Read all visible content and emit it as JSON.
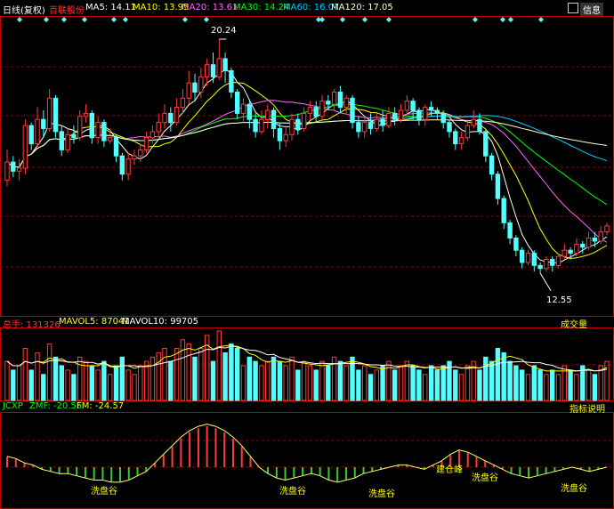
{
  "header": {
    "period": "日线(复权)",
    "stock_name": "百联股份",
    "ma": [
      {
        "label": "MA5: 14.11",
        "color": "#ffffff"
      },
      {
        "label": "MA10: 13.95",
        "color": "#ffff00"
      },
      {
        "label": "MA20: 13.61",
        "color": "#ff66ff"
      },
      {
        "label": "MA30: 14.24",
        "color": "#00ff00"
      },
      {
        "label": "MA60: 16.07",
        "color": "#00ccff"
      },
      {
        "label": "MA120: 17.05",
        "color": "#ffffcc"
      }
    ],
    "right_button": "信息",
    "icon": "grid-icon"
  },
  "colors": {
    "up": "#ff3b3b",
    "down": "#54ffff",
    "grid": "#8a0000",
    "border": "#c00000"
  },
  "annotations": {
    "high": "20.24",
    "low": "12.55"
  },
  "volume_header": {
    "total_label": "总手: 131326",
    "mavol5_label": "MAVOL5: 87041",
    "mavol10_label": "MAVOL10: 99705",
    "right_label": "成交量"
  },
  "indicator_header": {
    "name": "JCXP",
    "zmf_label": "ZMF: -20.55",
    "fm_label": "FM: -24.57",
    "right_label": "指标说明",
    "tags": [
      "洗盘谷",
      "洗盘谷",
      "洗盘谷",
      "建仓峰",
      "洗盘谷",
      "洗盘谷"
    ]
  },
  "chart_data": {
    "type": "candlestick",
    "high_price": 20.24,
    "low_price": 12.55,
    "price_range": [
      11.2,
      21.0
    ],
    "candles": [
      [
        15.6,
        16.2,
        16.6,
        15.4
      ],
      [
        16.2,
        15.9,
        16.4,
        15.7
      ],
      [
        15.9,
        16.0,
        16.3,
        15.6
      ],
      [
        16.0,
        17.4,
        17.6,
        15.8
      ],
      [
        17.4,
        16.8,
        17.5,
        16.6
      ],
      [
        16.8,
        17.6,
        18.0,
        16.7
      ],
      [
        17.6,
        17.3,
        17.9,
        17.0
      ],
      [
        17.3,
        18.3,
        18.6,
        17.2
      ],
      [
        18.3,
        17.2,
        18.4,
        17.0
      ],
      [
        17.2,
        16.6,
        17.4,
        16.4
      ],
      [
        16.6,
        17.1,
        17.3,
        16.5
      ],
      [
        17.1,
        17.0,
        17.4,
        16.8
      ],
      [
        17.0,
        17.7,
        17.9,
        16.9
      ],
      [
        17.7,
        17.8,
        18.1,
        17.5
      ],
      [
        17.8,
        17.0,
        17.9,
        16.8
      ],
      [
        17.0,
        17.5,
        17.7,
        16.8
      ],
      [
        17.5,
        16.9,
        17.6,
        16.7
      ],
      [
        16.9,
        17.0,
        17.3,
        16.8
      ],
      [
        17.0,
        16.4,
        17.1,
        16.2
      ],
      [
        16.4,
        15.8,
        16.5,
        15.6
      ],
      [
        15.8,
        16.3,
        16.5,
        15.6
      ],
      [
        16.3,
        16.4,
        16.6,
        16.1
      ],
      [
        16.4,
        16.6,
        16.8,
        16.2
      ],
      [
        16.6,
        17.0,
        17.2,
        16.5
      ],
      [
        17.0,
        17.2,
        17.4,
        16.8
      ],
      [
        17.2,
        17.5,
        17.8,
        17.0
      ],
      [
        17.5,
        17.8,
        18.1,
        17.3
      ],
      [
        17.8,
        17.5,
        18.0,
        17.2
      ],
      [
        17.5,
        18.0,
        18.3,
        17.4
      ],
      [
        18.0,
        18.3,
        18.6,
        17.8
      ],
      [
        18.3,
        18.8,
        19.2,
        18.1
      ],
      [
        18.8,
        18.5,
        19.1,
        18.2
      ],
      [
        18.5,
        19.0,
        19.3,
        18.3
      ],
      [
        19.0,
        19.4,
        19.6,
        18.7
      ],
      [
        19.4,
        19.0,
        19.8,
        18.8
      ],
      [
        19.0,
        19.6,
        20.24,
        18.9
      ],
      [
        19.6,
        19.2,
        19.8,
        18.8
      ],
      [
        19.2,
        18.5,
        19.3,
        18.3
      ],
      [
        18.5,
        17.8,
        18.6,
        17.6
      ],
      [
        17.8,
        18.1,
        18.3,
        17.5
      ],
      [
        18.1,
        17.6,
        18.2,
        17.3
      ],
      [
        17.6,
        17.2,
        17.8,
        17.0
      ],
      [
        17.2,
        17.6,
        17.9,
        17.1
      ],
      [
        17.6,
        17.9,
        18.1,
        17.3
      ],
      [
        17.9,
        17.3,
        18.0,
        17.0
      ],
      [
        17.3,
        16.9,
        17.5,
        16.6
      ],
      [
        16.9,
        17.1,
        17.4,
        16.7
      ],
      [
        17.1,
        17.6,
        17.8,
        16.9
      ],
      [
        17.6,
        17.3,
        17.8,
        17.1
      ],
      [
        17.3,
        17.8,
        18.0,
        17.2
      ],
      [
        17.8,
        18.0,
        18.2,
        17.6
      ],
      [
        18.0,
        17.7,
        18.2,
        17.5
      ],
      [
        17.7,
        18.2,
        18.4,
        17.6
      ],
      [
        18.2,
        18.1,
        18.4,
        17.9
      ],
      [
        18.1,
        18.5,
        18.6,
        17.9
      ],
      [
        18.5,
        18.0,
        18.7,
        17.8
      ],
      [
        18.0,
        18.3,
        18.4,
        17.8
      ],
      [
        18.3,
        17.5,
        18.4,
        17.3
      ],
      [
        17.5,
        17.2,
        17.7,
        17.0
      ],
      [
        17.2,
        17.5,
        17.7,
        17.0
      ],
      [
        17.5,
        17.3,
        17.8,
        17.1
      ],
      [
        17.3,
        17.6,
        17.8,
        17.2
      ],
      [
        17.6,
        17.4,
        17.9,
        17.2
      ],
      [
        17.4,
        17.8,
        18.0,
        17.3
      ],
      [
        17.8,
        17.6,
        18.0,
        17.4
      ],
      [
        17.6,
        17.9,
        18.1,
        17.5
      ],
      [
        17.9,
        18.2,
        18.4,
        17.7
      ],
      [
        18.2,
        17.9,
        18.3,
        17.6
      ],
      [
        17.9,
        17.6,
        18.0,
        17.4
      ],
      [
        17.6,
        18.0,
        18.1,
        17.4
      ],
      [
        18.0,
        17.9,
        18.2,
        17.7
      ],
      [
        17.9,
        17.8,
        18.0,
        17.6
      ],
      [
        17.8,
        17.5,
        17.9,
        17.3
      ],
      [
        17.5,
        17.2,
        17.6,
        17.0
      ],
      [
        17.2,
        16.8,
        17.3,
        16.6
      ],
      [
        16.8,
        17.0,
        17.2,
        16.6
      ],
      [
        17.0,
        17.4,
        17.6,
        16.9
      ],
      [
        17.4,
        17.6,
        17.9,
        17.3
      ],
      [
        17.6,
        17.2,
        17.8,
        17.1
      ],
      [
        17.2,
        16.4,
        17.3,
        16.2
      ],
      [
        16.4,
        15.8,
        16.5,
        15.6
      ],
      [
        15.8,
        15.0,
        15.9,
        14.8
      ],
      [
        15.0,
        14.2,
        15.1,
        14.0
      ],
      [
        14.2,
        13.7,
        14.3,
        13.5
      ],
      [
        13.7,
        13.3,
        13.8,
        13.1
      ],
      [
        13.3,
        12.9,
        13.4,
        12.7
      ],
      [
        12.9,
        13.2,
        13.3,
        12.8
      ],
      [
        13.2,
        12.8,
        13.3,
        12.6
      ],
      [
        12.8,
        12.7,
        12.9,
        12.55
      ],
      [
        12.7,
        13.0,
        13.1,
        12.6
      ],
      [
        13.0,
        12.8,
        13.1,
        12.6
      ],
      [
        12.8,
        13.1,
        13.2,
        12.7
      ],
      [
        13.1,
        13.3,
        13.5,
        13.0
      ],
      [
        13.3,
        13.2,
        13.4,
        13.0
      ],
      [
        13.2,
        13.5,
        13.7,
        13.1
      ],
      [
        13.5,
        13.4,
        13.6,
        13.2
      ],
      [
        13.4,
        13.7,
        13.9,
        13.3
      ],
      [
        13.7,
        13.6,
        13.9,
        13.4
      ],
      [
        13.6,
        13.9,
        14.1,
        13.5
      ],
      [
        13.9,
        14.1,
        14.2,
        13.8
      ]
    ],
    "volume": [
      9,
      7,
      8,
      12,
      7,
      11,
      6,
      13,
      10,
      8,
      7,
      6,
      10,
      9,
      8,
      7,
      9,
      6,
      8,
      10,
      7,
      6,
      8,
      9,
      10,
      11,
      12,
      9,
      12,
      14,
      13,
      10,
      12,
      15,
      9,
      16,
      11,
      13,
      12,
      8,
      10,
      9,
      8,
      9,
      10,
      9,
      8,
      10,
      7,
      9,
      8,
      7,
      9,
      8,
      10,
      9,
      8,
      10,
      7,
      8,
      6,
      7,
      8,
      9,
      7,
      8,
      9,
      8,
      7,
      6,
      8,
      7,
      8,
      9,
      7,
      6,
      8,
      9,
      7,
      10,
      9,
      12,
      11,
      9,
      8,
      7,
      6,
      8,
      7,
      6,
      7,
      6,
      8,
      7,
      6,
      8,
      7,
      6,
      8,
      9
    ],
    "indicator": [
      5,
      4,
      2,
      1,
      -1,
      -2,
      -3,
      -3,
      -4,
      -5,
      -6,
      -6,
      -7,
      -7,
      -6,
      -4,
      -2,
      2,
      6,
      10,
      14,
      17,
      19,
      20,
      19,
      17,
      14,
      10,
      5,
      0,
      -3,
      -5,
      -6,
      -5,
      -4,
      -3,
      -4,
      -6,
      -7,
      -6,
      -5,
      -3,
      -2,
      -1,
      0,
      1,
      1,
      0,
      -1,
      1,
      3,
      6,
      8,
      7,
      5,
      3,
      1,
      -1,
      -3,
      -4,
      -5,
      -4,
      -3,
      -2,
      -1,
      0,
      -1,
      -2,
      -1,
      0
    ]
  }
}
